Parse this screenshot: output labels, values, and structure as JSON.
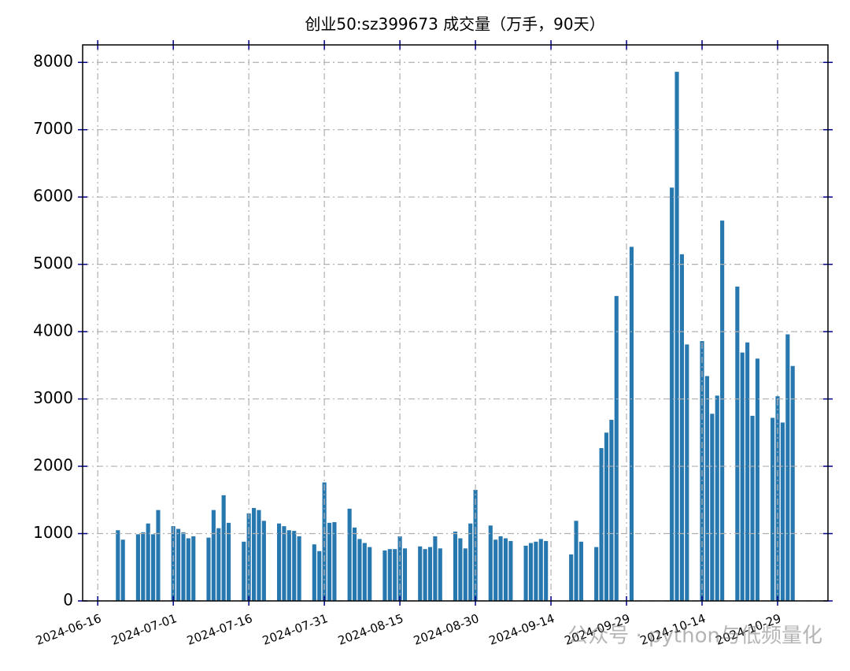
{
  "chart_data": {
    "type": "bar",
    "title": "创业50:sz399673 成交量（万手，90天）",
    "watermark": "公众号 · python与低频量化",
    "color": "#2878b0",
    "grid": true,
    "x": [
      "2024-06-20",
      "2024-06-21",
      "2024-06-24",
      "2024-06-25",
      "2024-06-26",
      "2024-06-27",
      "2024-06-28",
      "2024-07-01",
      "2024-07-02",
      "2024-07-03",
      "2024-07-04",
      "2024-07-05",
      "2024-07-08",
      "2024-07-09",
      "2024-07-10",
      "2024-07-11",
      "2024-07-12",
      "2024-07-15",
      "2024-07-16",
      "2024-07-17",
      "2024-07-18",
      "2024-07-19",
      "2024-07-22",
      "2024-07-23",
      "2024-07-24",
      "2024-07-25",
      "2024-07-26",
      "2024-07-29",
      "2024-07-30",
      "2024-07-31",
      "2024-08-01",
      "2024-08-02",
      "2024-08-05",
      "2024-08-06",
      "2024-08-07",
      "2024-08-08",
      "2024-08-09",
      "2024-08-12",
      "2024-08-13",
      "2024-08-14",
      "2024-08-15",
      "2024-08-16",
      "2024-08-19",
      "2024-08-20",
      "2024-08-21",
      "2024-08-22",
      "2024-08-23",
      "2024-08-26",
      "2024-08-27",
      "2024-08-28",
      "2024-08-29",
      "2024-08-30",
      "2024-09-02",
      "2024-09-03",
      "2024-09-04",
      "2024-09-05",
      "2024-09-06",
      "2024-09-09",
      "2024-09-10",
      "2024-09-11",
      "2024-09-12",
      "2024-09-13",
      "2024-09-18",
      "2024-09-19",
      "2024-09-20",
      "2024-09-23",
      "2024-09-24",
      "2024-09-25",
      "2024-09-26",
      "2024-09-27",
      "2024-09-30",
      "2024-10-08",
      "2024-10-09",
      "2024-10-10",
      "2024-10-11",
      "2024-10-14",
      "2024-10-15",
      "2024-10-16",
      "2024-10-17",
      "2024-10-18",
      "2024-10-21",
      "2024-10-22",
      "2024-10-23",
      "2024-10-24",
      "2024-10-25",
      "2024-10-28",
      "2024-10-29",
      "2024-10-30",
      "2024-10-31",
      "2024-11-01"
    ],
    "values": [
      1050,
      910,
      990,
      1020,
      1150,
      990,
      1350,
      1110,
      1070,
      1020,
      930,
      960,
      940,
      1350,
      1080,
      1570,
      1160,
      880,
      1300,
      1380,
      1350,
      1190,
      1150,
      1110,
      1050,
      1040,
      960,
      840,
      740,
      1760,
      1160,
      1170,
      1370,
      1090,
      920,
      860,
      800,
      750,
      770,
      770,
      960,
      780,
      810,
      770,
      800,
      960,
      780,
      1030,
      930,
      780,
      1150,
      1650,
      1120,
      910,
      960,
      930,
      890,
      820,
      860,
      880,
      920,
      890,
      690,
      1190,
      880,
      800,
      2270,
      2500,
      2690,
      4530,
      5260,
      6140,
      7860,
      5150,
      3810,
      3860,
      3340,
      2780,
      3050,
      5650,
      4670,
      3690,
      3840,
      2750,
      3600,
      2720,
      3040,
      2650,
      3960,
      3490
    ],
    "xlim": [
      "2024-06-13",
      "2024-11-08"
    ],
    "xticks": [
      "2024-06-16",
      "2024-07-01",
      "2024-07-16",
      "2024-07-31",
      "2024-08-15",
      "2024-08-30",
      "2024-09-14",
      "2024-09-29",
      "2024-10-14",
      "2024-10-29"
    ],
    "ylim": [
      0,
      8260
    ],
    "yticks": [
      0,
      1000,
      2000,
      3000,
      4000,
      5000,
      6000,
      7000,
      8000
    ]
  }
}
